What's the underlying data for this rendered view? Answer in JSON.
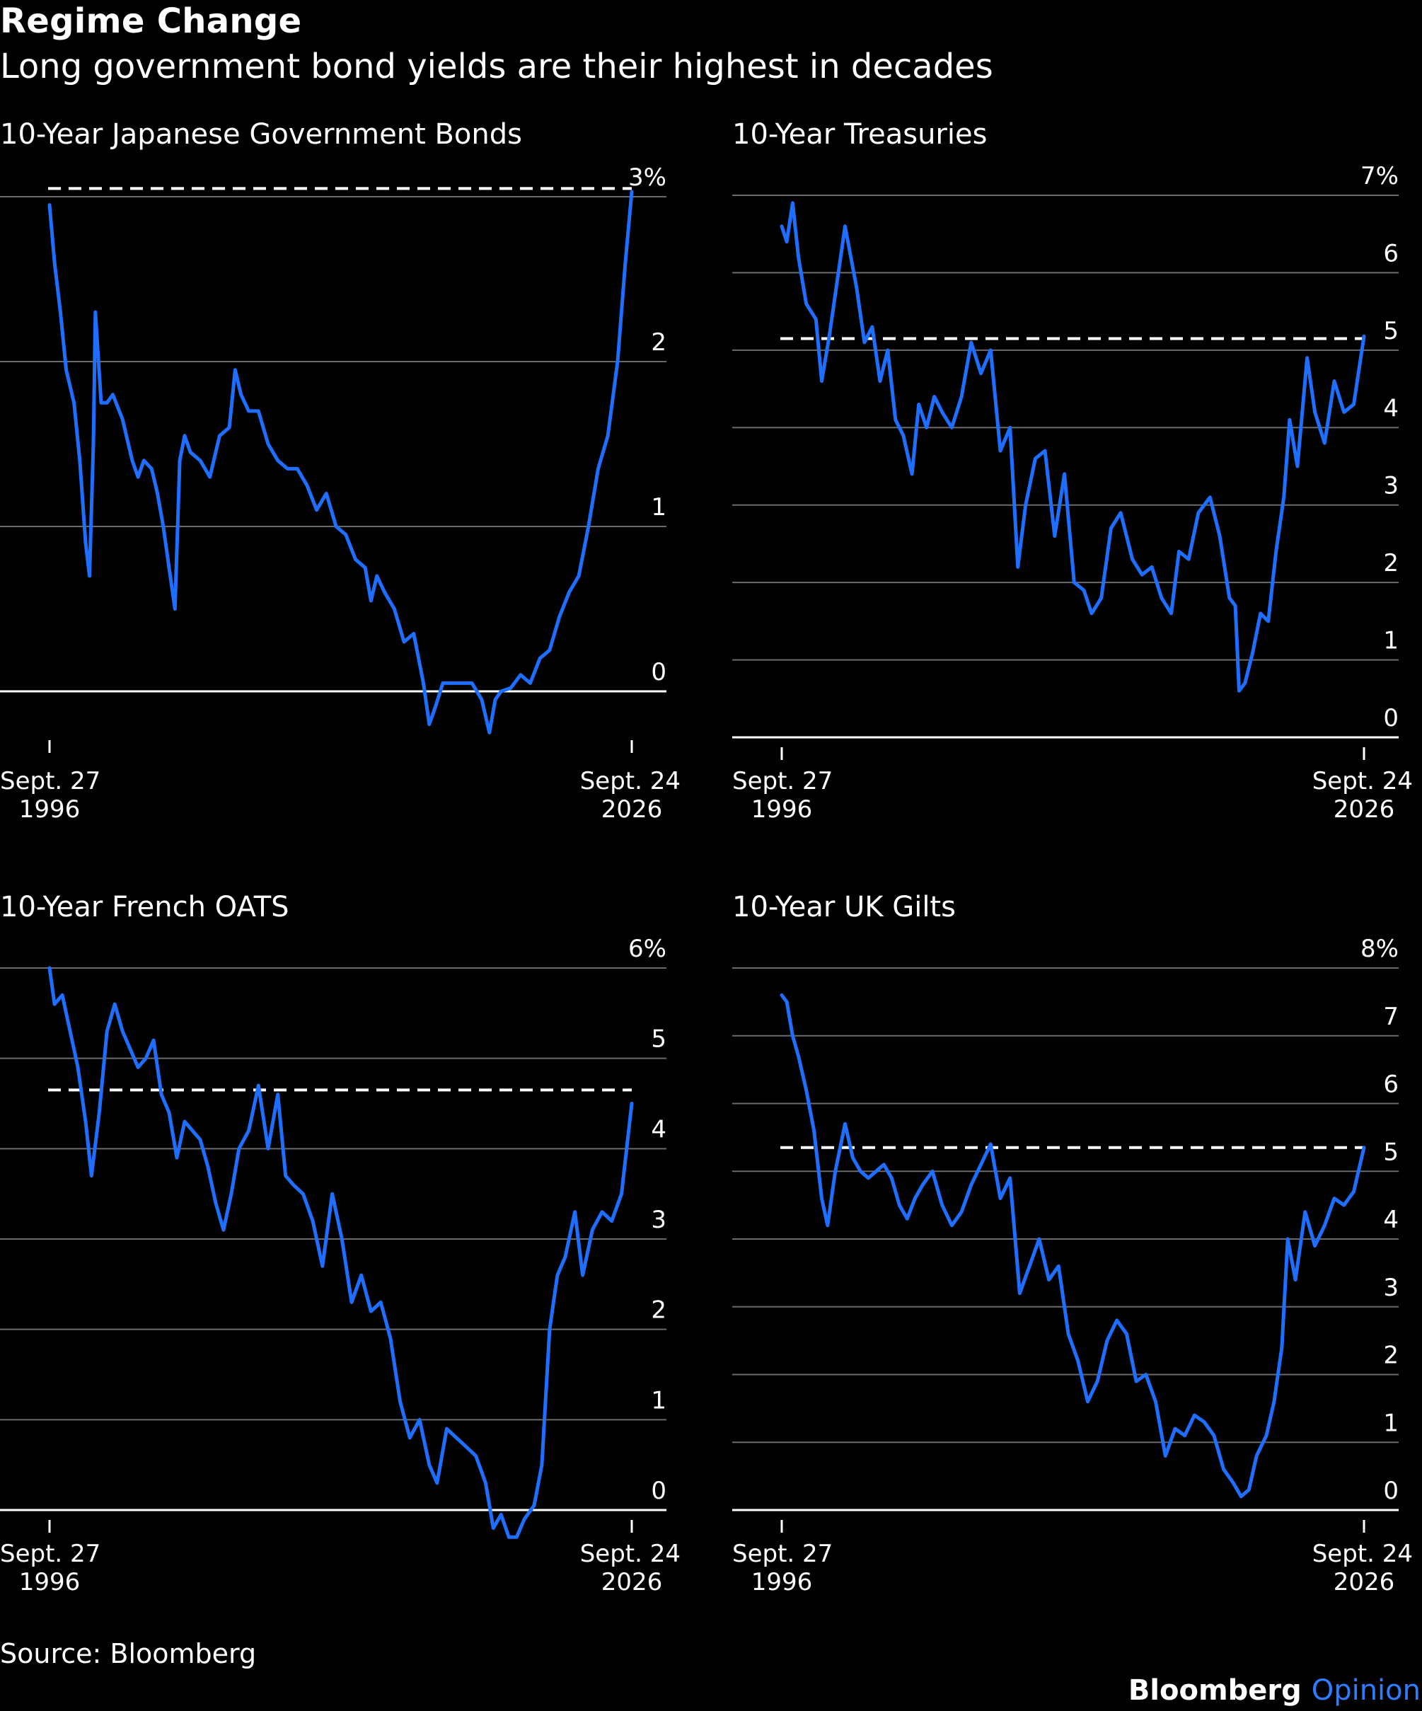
{
  "header": {
    "title": "Regime Change",
    "subtitle": "Long government bond yields are their highest in decades"
  },
  "footer": {
    "source": "Source: Bloomberg",
    "brand_main": "Bloomberg",
    "brand_accent": "Opinion"
  },
  "colors": {
    "background": "#000000",
    "line": "#1e6fff",
    "grid": "#6b6b6b",
    "reference": "#ffffff"
  },
  "chart_data": [
    {
      "type": "line",
      "title": "10-Year Japanese Government Bonds",
      "unit": "%",
      "ylim": [
        -0.3,
        3.05
      ],
      "yticks": [
        0,
        1,
        2,
        3
      ],
      "ytick_labels": [
        "0",
        "1",
        "2",
        "3%"
      ],
      "xlim": [
        1996.74,
        2026.73
      ],
      "x_start_label": [
        "Sept. 27",
        "1996"
      ],
      "x_end_label": [
        "Sept. 24",
        "2026"
      ],
      "reference_line": 3.05,
      "series": [
        {
          "x": [
            1996.74,
            1997.0,
            1997.3,
            1997.6,
            1998.0,
            1998.3,
            1998.6,
            1998.8,
            1999.0,
            1999.1,
            1999.4,
            1999.7,
            2000.0,
            2000.5,
            2001.0,
            2001.3,
            2001.6,
            2002.0,
            2002.3,
            2002.6,
            2002.9,
            2003.2,
            2003.45,
            2003.7,
            2004.0,
            2004.5,
            2005.0,
            2005.5,
            2006.0,
            2006.3,
            2006.6,
            2007.0,
            2007.5,
            2008.0,
            2008.5,
            2009.0,
            2009.5,
            2010.0,
            2010.5,
            2011.0,
            2011.5,
            2012.0,
            2012.5,
            2013.0,
            2013.3,
            2013.6,
            2014.0,
            2014.5,
            2015.0,
            2015.5,
            2016.0,
            2016.3,
            2016.6,
            2017.0,
            2017.5,
            2018.0,
            2018.5,
            2019.0,
            2019.4,
            2019.7,
            2020.0,
            2020.5,
            2021.0,
            2021.5,
            2022.0,
            2022.5,
            2023.0,
            2023.5,
            2024.0,
            2024.5,
            2025.0,
            2025.5,
            2026.0,
            2026.4,
            2026.73
          ],
          "y": [
            2.95,
            2.6,
            2.3,
            1.95,
            1.75,
            1.4,
            0.9,
            0.7,
            1.5,
            2.3,
            1.75,
            1.75,
            1.8,
            1.65,
            1.4,
            1.3,
            1.4,
            1.35,
            1.2,
            1.0,
            0.75,
            0.5,
            1.4,
            1.55,
            1.45,
            1.4,
            1.3,
            1.55,
            1.6,
            1.95,
            1.8,
            1.7,
            1.7,
            1.5,
            1.4,
            1.35,
            1.35,
            1.25,
            1.1,
            1.2,
            1.0,
            0.95,
            0.8,
            0.75,
            0.55,
            0.7,
            0.6,
            0.5,
            0.3,
            0.35,
            0.05,
            -0.2,
            -0.1,
            0.05,
            0.05,
            0.05,
            0.05,
            -0.05,
            -0.25,
            -0.05,
            0.0,
            0.02,
            0.1,
            0.05,
            0.2,
            0.25,
            0.45,
            0.6,
            0.7,
            1.0,
            1.35,
            1.55,
            2.0,
            2.6,
            3.03
          ]
        }
      ]
    },
    {
      "type": "line",
      "title": "10-Year Treasuries",
      "unit": "%",
      "ylim": [
        0,
        7
      ],
      "yticks": [
        0,
        1,
        2,
        3,
        4,
        5,
        6,
        7
      ],
      "ytick_labels": [
        "0",
        "1",
        "2",
        "3",
        "4",
        "5",
        "6",
        "7%"
      ],
      "xlim": [
        1996.74,
        2026.73
      ],
      "x_start_label": [
        "Sept. 27",
        "1996"
      ],
      "x_end_label": [
        "Sept. 24",
        "2026"
      ],
      "reference_line": 5.15,
      "series": [
        {
          "x": [
            1996.74,
            1997.0,
            1997.3,
            1997.6,
            1998.0,
            1998.5,
            1998.8,
            1999.2,
            1999.6,
            2000.0,
            2000.3,
            2000.6,
            2001.0,
            2001.4,
            2001.8,
            2002.2,
            2002.6,
            2003.0,
            2003.45,
            2003.8,
            2004.2,
            2004.6,
            2005.0,
            2005.5,
            2006.0,
            2006.5,
            2007.0,
            2007.5,
            2008.0,
            2008.5,
            2008.9,
            2009.3,
            2009.8,
            2010.3,
            2010.8,
            2011.3,
            2011.8,
            2012.3,
            2012.7,
            2013.2,
            2013.7,
            2014.2,
            2014.8,
            2015.3,
            2015.8,
            2016.3,
            2016.8,
            2017.2,
            2017.7,
            2018.2,
            2018.8,
            2019.3,
            2019.8,
            2020.1,
            2020.3,
            2020.6,
            2021.0,
            2021.4,
            2021.8,
            2022.2,
            2022.6,
            2022.9,
            2023.3,
            2023.8,
            2024.2,
            2024.7,
            2025.2,
            2025.7,
            2026.2,
            2026.73
          ],
          "y": [
            6.6,
            6.4,
            6.9,
            6.2,
            5.6,
            5.4,
            4.6,
            5.2,
            5.9,
            6.6,
            6.2,
            5.8,
            5.1,
            5.3,
            4.6,
            5.0,
            4.1,
            3.9,
            3.4,
            4.3,
            4.0,
            4.4,
            4.2,
            4.0,
            4.4,
            5.1,
            4.7,
            5.0,
            3.7,
            4.0,
            2.2,
            3.0,
            3.6,
            3.7,
            2.6,
            3.4,
            2.0,
            1.9,
            1.6,
            1.8,
            2.7,
            2.9,
            2.3,
            2.1,
            2.2,
            1.8,
            1.6,
            2.4,
            2.3,
            2.9,
            3.1,
            2.6,
            1.8,
            1.7,
            0.6,
            0.7,
            1.1,
            1.6,
            1.5,
            2.4,
            3.1,
            4.1,
            3.5,
            4.9,
            4.2,
            3.8,
            4.6,
            4.2,
            4.3,
            5.18
          ]
        }
      ]
    },
    {
      "type": "line",
      "title": "10-Year French OATS",
      "unit": "%",
      "ylim": [
        -0.4,
        6
      ],
      "yticks": [
        0,
        1,
        2,
        3,
        4,
        5,
        6
      ],
      "ytick_labels": [
        "0",
        "1",
        "2",
        "3",
        "4",
        "5",
        "6%"
      ],
      "xlim": [
        1996.74,
        2026.73
      ],
      "x_start_label": [
        "Sept. 27",
        "1996"
      ],
      "x_end_label": [
        "Sept. 24",
        "2026"
      ],
      "reference_line": 4.65,
      "series": [
        {
          "x": [
            1996.74,
            1997.0,
            1997.4,
            1997.8,
            1998.2,
            1998.6,
            1998.9,
            1999.3,
            1999.7,
            2000.1,
            2000.5,
            2000.9,
            2001.3,
            2001.7,
            2002.1,
            2002.5,
            2002.9,
            2003.3,
            2003.7,
            2004.1,
            2004.5,
            2004.9,
            2005.3,
            2005.7,
            2006.1,
            2006.5,
            2007.0,
            2007.5,
            2008.0,
            2008.5,
            2008.9,
            2009.3,
            2009.8,
            2010.3,
            2010.8,
            2011.3,
            2011.8,
            2012.3,
            2012.8,
            2013.3,
            2013.8,
            2014.3,
            2014.8,
            2015.3,
            2015.8,
            2016.3,
            2016.7,
            2017.2,
            2017.7,
            2018.2,
            2018.7,
            2019.2,
            2019.6,
            2020.0,
            2020.4,
            2020.8,
            2021.2,
            2021.7,
            2022.1,
            2022.5,
            2022.9,
            2023.3,
            2023.8,
            2024.2,
            2024.7,
            2025.2,
            2025.7,
            2026.2,
            2026.73
          ],
          "y": [
            6.0,
            5.6,
            5.7,
            5.3,
            4.9,
            4.3,
            3.7,
            4.4,
            5.3,
            5.6,
            5.3,
            5.1,
            4.9,
            5.0,
            5.2,
            4.6,
            4.4,
            3.9,
            4.3,
            4.2,
            4.1,
            3.8,
            3.4,
            3.1,
            3.5,
            4.0,
            4.2,
            4.7,
            4.0,
            4.6,
            3.7,
            3.6,
            3.5,
            3.2,
            2.7,
            3.5,
            3.0,
            2.3,
            2.6,
            2.2,
            2.3,
            1.9,
            1.2,
            0.8,
            1.0,
            0.5,
            0.3,
            0.9,
            0.8,
            0.7,
            0.6,
            0.3,
            -0.2,
            -0.05,
            -0.3,
            -0.3,
            -0.1,
            0.05,
            0.5,
            2.0,
            2.6,
            2.8,
            3.3,
            2.6,
            3.1,
            3.3,
            3.2,
            3.5,
            4.5
          ]
        }
      ]
    },
    {
      "type": "line",
      "title": "10-Year UK Gilts",
      "unit": "%",
      "ylim": [
        0,
        8
      ],
      "yticks": [
        0,
        1,
        2,
        3,
        4,
        5,
        6,
        7,
        8
      ],
      "ytick_labels": [
        "0",
        "1",
        "2",
        "3",
        "4",
        "5",
        "6",
        "7",
        "8%"
      ],
      "xlim": [
        1996.74,
        2026.73
      ],
      "x_start_label": [
        "Sept. 27",
        "1996"
      ],
      "x_end_label": [
        "Sept. 24",
        "2026"
      ],
      "reference_line": 5.35,
      "series": [
        {
          "x": [
            1996.74,
            1997.0,
            1997.3,
            1997.6,
            1998.0,
            1998.4,
            1998.8,
            1999.1,
            1999.5,
            2000.0,
            2000.4,
            2000.8,
            2001.2,
            2001.6,
            2002.0,
            2002.4,
            2002.8,
            2003.2,
            2003.6,
            2004.0,
            2004.5,
            2005.0,
            2005.5,
            2006.0,
            2006.5,
            2007.0,
            2007.5,
            2008.0,
            2008.5,
            2009.0,
            2009.5,
            2010.0,
            2010.5,
            2011.0,
            2011.5,
            2012.0,
            2012.5,
            2013.0,
            2013.5,
            2014.0,
            2014.5,
            2015.0,
            2015.5,
            2016.0,
            2016.5,
            2017.0,
            2017.5,
            2018.0,
            2018.5,
            2019.0,
            2019.5,
            2020.0,
            2020.4,
            2020.8,
            2021.2,
            2021.7,
            2022.1,
            2022.5,
            2022.8,
            2023.2,
            2023.7,
            2024.2,
            2024.7,
            2025.2,
            2025.7,
            2026.2,
            2026.73
          ],
          "y": [
            7.6,
            7.5,
            7.0,
            6.7,
            6.2,
            5.6,
            4.6,
            4.2,
            5.0,
            5.7,
            5.2,
            5.0,
            4.9,
            5.0,
            5.1,
            4.9,
            4.5,
            4.3,
            4.6,
            4.8,
            5.0,
            4.5,
            4.2,
            4.4,
            4.8,
            5.1,
            5.4,
            4.6,
            4.9,
            3.2,
            3.6,
            4.0,
            3.4,
            3.6,
            2.6,
            2.2,
            1.6,
            1.9,
            2.5,
            2.8,
            2.6,
            1.9,
            2.0,
            1.6,
            0.8,
            1.2,
            1.1,
            1.4,
            1.3,
            1.1,
            0.6,
            0.4,
            0.2,
            0.3,
            0.8,
            1.1,
            1.6,
            2.4,
            4.0,
            3.4,
            4.4,
            3.9,
            4.2,
            4.6,
            4.5,
            4.7,
            5.35
          ]
        }
      ]
    }
  ]
}
